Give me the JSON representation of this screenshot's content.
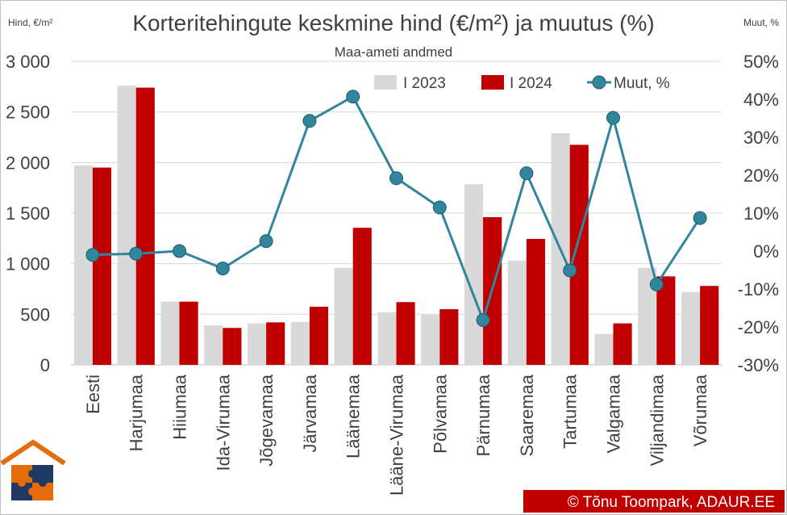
{
  "chart_data": {
    "type": "bar",
    "title": "Korteritehingute keskmine hind (€/m²) ja muutus (%)",
    "subtitle": "Maa-ameti andmed",
    "ylabel": "Hind, €/m²",
    "y2label": "Muut, %",
    "ylim": [
      0,
      3000
    ],
    "y2lim": [
      -30,
      50
    ],
    "yticks": [
      "0",
      "500",
      "1 000",
      "1 500",
      "2 000",
      "2 500",
      "3 000"
    ],
    "y2ticks": [
      "-30%",
      "-20%",
      "-10%",
      "0%",
      "10%",
      "20%",
      "30%",
      "40%",
      "50%"
    ],
    "categories": [
      "Eesti",
      "Harjumaa",
      "Hiiumaa",
      "Ida-Virumaa",
      "Jõgevamaa",
      "Järvamaa",
      "Läänemaa",
      "Lääne-Virumaa",
      "Põlvamaa",
      "Pärnumaa",
      "Saaremaa",
      "Tartumaa",
      "Valgamaa",
      "Viljandimaa",
      "Võrumaa"
    ],
    "series": [
      {
        "name": "I 2023",
        "kind": "bar",
        "color": "#d9d9d9",
        "values": [
          1970,
          2760,
          625,
          390,
          410,
          425,
          960,
          520,
          495,
          1785,
          1030,
          2290,
          305,
          960,
          720
        ]
      },
      {
        "name": "I 2024",
        "kind": "bar",
        "color": "#c00000",
        "values": [
          1950,
          2740,
          625,
          365,
          420,
          575,
          1355,
          620,
          550,
          1460,
          1245,
          2175,
          410,
          875,
          780
        ]
      },
      {
        "name": "Muut, %",
        "kind": "line",
        "axis": "right",
        "color": "#31859c",
        "values": [
          -1,
          -0.7,
          0,
          -4.6,
          2.6,
          34.3,
          40.7,
          19.2,
          11.5,
          -18.2,
          20.5,
          -5.1,
          35.1,
          -8.8,
          8.7
        ]
      }
    ],
    "legend": "top-right",
    "grid": true
  },
  "credit": "© Tõnu Toompark, ADAUR.EE",
  "colors": {
    "text": "#404040",
    "grid": "#d9d9d9",
    "credit_bg": "#c00000"
  }
}
